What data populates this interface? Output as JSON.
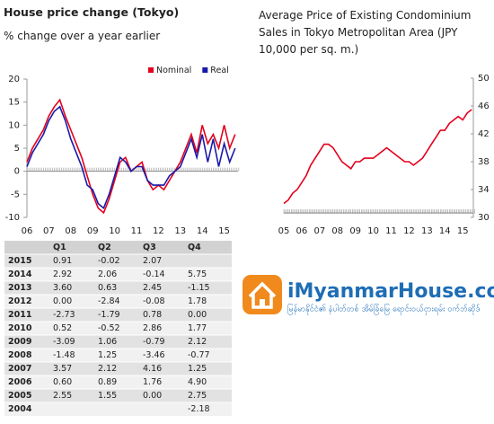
{
  "chart_data": [
    {
      "type": "line",
      "title": "House price change (Tokyo)",
      "subtitle": "% change over a year earlier",
      "categories": [
        "06",
        null,
        null,
        null,
        "07",
        null,
        null,
        null,
        "08",
        null,
        null,
        null,
        "09",
        null,
        null,
        null,
        "10",
        null,
        null,
        null,
        "11",
        null,
        null,
        null,
        "12",
        null,
        null,
        null,
        "13",
        null,
        null,
        null,
        "14",
        null,
        null,
        null,
        "15",
        null,
        null
      ],
      "series": [
        {
          "name": "Nominal",
          "color": "#e4001b",
          "values": [
            2,
            5,
            7,
            9,
            12,
            14,
            15.5,
            12,
            9,
            6,
            3,
            -1,
            -5,
            -8,
            -9,
            -6,
            -2,
            2,
            3,
            0,
            1,
            2,
            -2,
            -4,
            -3,
            -4,
            -2,
            0,
            2,
            5,
            8,
            4,
            10,
            6,
            8,
            5,
            10,
            5,
            8
          ]
        },
        {
          "name": "Real",
          "color": "#1a1aa8",
          "values": [
            1,
            4,
            6,
            8,
            11,
            13,
            14,
            11,
            7,
            4,
            1,
            -3,
            -4,
            -7,
            -8,
            -5,
            -1,
            3,
            2,
            0,
            1,
            1,
            -2,
            -3,
            -3,
            -3,
            -1,
            0,
            1,
            4,
            7,
            3,
            8,
            2,
            7,
            1,
            6,
            2,
            5
          ]
        }
      ],
      "ylim": [
        -10,
        20
      ],
      "yticks": [
        -10,
        -5,
        0,
        5,
        10,
        15,
        20
      ],
      "legend": "top-right"
    },
    {
      "type": "line",
      "title": "Average Price of Existing Condominium Sales in Tokyo Metropolitan Area (JPY 10,000 per sq. m.)",
      "categories": [
        "05",
        null,
        null,
        null,
        "06",
        null,
        null,
        null,
        "07",
        null,
        null,
        null,
        "08",
        null,
        null,
        null,
        "09",
        null,
        null,
        null,
        "10",
        null,
        null,
        null,
        "11",
        null,
        null,
        null,
        "12",
        null,
        null,
        null,
        "13",
        null,
        null,
        null,
        "14",
        null,
        null,
        null,
        "15",
        null,
        null
      ],
      "series": [
        {
          "color": "#e4001b",
          "values": [
            32,
            32.5,
            33.5,
            34,
            35,
            36,
            37.5,
            38.5,
            39.5,
            40.5,
            40.5,
            40,
            39,
            38,
            37.5,
            37,
            38,
            38,
            38.5,
            38.5,
            38.5,
            39,
            39.5,
            40,
            39.5,
            39,
            38.5,
            38,
            38,
            37.5,
            38,
            38.5,
            39.5,
            40.5,
            41.5,
            42.5,
            42.5,
            43.5,
            44,
            44.5,
            44,
            45,
            45.5
          ]
        }
      ],
      "ylim": [
        30,
        50
      ],
      "yticks": [
        30,
        34,
        38,
        42,
        46,
        50
      ],
      "axis_side": "right"
    }
  ],
  "table": {
    "header": [
      "Q1",
      "Q2",
      "Q3",
      "Q4"
    ],
    "rows": [
      [
        "2015",
        "0.91",
        "-0.02",
        "2.07",
        null
      ],
      [
        "2014",
        "2.92",
        "2.06",
        "-0.14",
        "5.75"
      ],
      [
        "2013",
        "3.60",
        "0.63",
        "2.45",
        "-1.15"
      ],
      [
        "2012",
        "0.00",
        "-2.84",
        "-0.08",
        "1.78"
      ],
      [
        "2011",
        "-2.73",
        "-1.79",
        "0.78",
        "0.00"
      ],
      [
        "2010",
        "0.52",
        "-0.52",
        "2.86",
        "1.77"
      ],
      [
        "2009",
        "-3.09",
        "1.06",
        "-0.79",
        "2.12"
      ],
      [
        "2008",
        "-1.48",
        "1.25",
        "-3.46",
        "-0.77"
      ],
      [
        "2007",
        "3.57",
        "2.12",
        "4.16",
        "1.25"
      ],
      [
        "2006",
        "0.60",
        "0.89",
        "1.76",
        "4.90"
      ],
      [
        "2005",
        "2.55",
        "1.55",
        "0.00",
        "2.75"
      ],
      [
        "2004",
        null,
        null,
        null,
        "-2.18"
      ]
    ]
  },
  "logo": {
    "name": "iMyanmarHouse.com",
    "tagline": "မြန်မာနိုင်ငံ၏ နံပါတ်တစ် အိမ်ခြံမြေ ရောင်းဝယ်ငှားရမ်း ဝက်ဘ်ဆိုဒ်"
  }
}
